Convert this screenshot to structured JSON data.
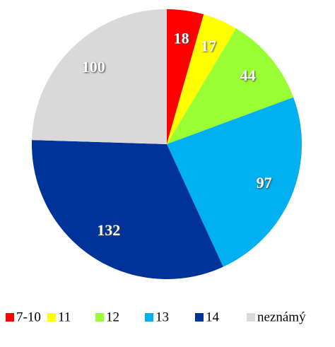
{
  "chart_data": {
    "type": "pie",
    "categories": [
      "7-10",
      "11",
      "12",
      "13",
      "14",
      "neznámý"
    ],
    "values": [
      18,
      17,
      44,
      97,
      132,
      100
    ],
    "colors": [
      "#ff0000",
      "#ffff00",
      "#99ff33",
      "#00b0f0",
      "#003399",
      "#d9d9d9"
    ],
    "legend": "bottom"
  }
}
